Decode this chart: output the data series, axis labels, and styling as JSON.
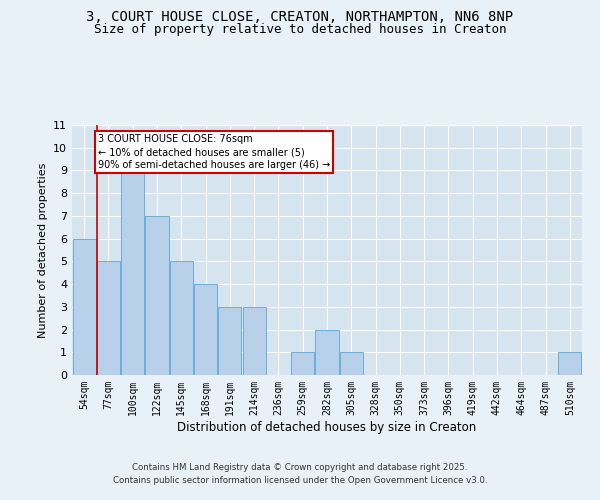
{
  "title_line1": "3, COURT HOUSE CLOSE, CREATON, NORTHAMPTON, NN6 8NP",
  "title_line2": "Size of property relative to detached houses in Creaton",
  "xlabel": "Distribution of detached houses by size in Creaton",
  "ylabel": "Number of detached properties",
  "categories": [
    "54sqm",
    "77sqm",
    "100sqm",
    "122sqm",
    "145sqm",
    "168sqm",
    "191sqm",
    "214sqm",
    "236sqm",
    "259sqm",
    "282sqm",
    "305sqm",
    "328sqm",
    "350sqm",
    "373sqm",
    "396sqm",
    "419sqm",
    "442sqm",
    "464sqm",
    "487sqm",
    "510sqm"
  ],
  "values": [
    6,
    5,
    9,
    7,
    5,
    4,
    3,
    3,
    0,
    1,
    2,
    1,
    0,
    0,
    0,
    0,
    0,
    0,
    0,
    0,
    1
  ],
  "bar_color": "#b8d0ea",
  "bar_edge_color": "#6baed6",
  "subject_label": "3 COURT HOUSE CLOSE: 76sqm",
  "annotation_line1": "← 10% of detached houses are smaller (5)",
  "annotation_line2": "90% of semi-detached houses are larger (46) →",
  "annotation_box_color": "#ffffff",
  "annotation_box_edge": "#cc0000",
  "subject_line_color": "#cc0000",
  "ylim": [
    0,
    11
  ],
  "yticks": [
    0,
    1,
    2,
    3,
    4,
    5,
    6,
    7,
    8,
    9,
    10,
    11
  ],
  "footnote_line1": "Contains HM Land Registry data © Crown copyright and database right 2025.",
  "footnote_line2": "Contains public sector information licensed under the Open Government Licence v3.0.",
  "bg_color": "#e8f0f8",
  "plot_bg_color": "#d6e4f0",
  "title_fontsize": 10,
  "subtitle_fontsize": 9
}
